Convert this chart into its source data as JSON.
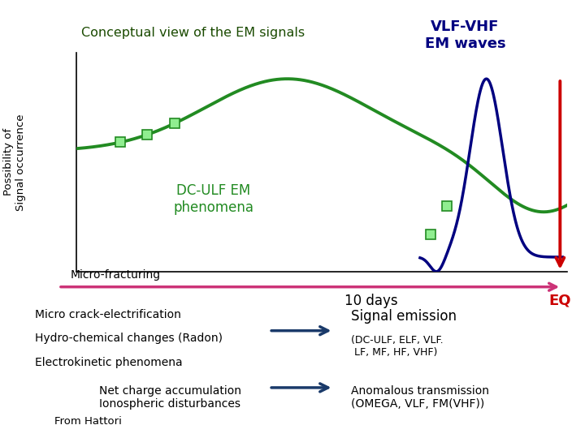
{
  "title_box_text": "Conceptual view of the EM signals",
  "title_box_bg": "#22cc00",
  "title_box_text_color": "#1a4a00",
  "vlf_vhf_text": "VLF-VHF\nEM waves",
  "vlf_vhf_color": "#000080",
  "ylabel_line1": "Possibility of",
  "ylabel_line2": "Signal occurrence",
  "xlabel_10days": "10 days",
  "xlabel_eq": "EQ",
  "eq_color": "#cc0000",
  "green_curve_color": "#228B22",
  "blue_curve_color": "#000080",
  "dc_ulf_text": "DC-ULF EM\nphenomena",
  "dc_ulf_color": "#228B22",
  "micro_fracturing_text": "Micro-fracturing",
  "micro_crack_line1": "Micro crack-electrification",
  "micro_crack_line2": "Hydro-chemical changes (Radon)",
  "micro_crack_line3": "Electrokinetic phenomena",
  "net_charge_text": "Net charge accumulation\nIonospheric disturbances",
  "signal_emission_title": "Signal emission",
  "signal_emission_sub": "(DC-ULF, ELF, VLF.\n LF, MF, HF, VHF)",
  "anomalous_text": "Anomalous transmission\n(OMEGA, VLF, FM(VHF))",
  "from_hattori_text": "From Hattori",
  "from_hattori_bg": "#c8d4a0",
  "arrow_dark_color": "#1a3a6a",
  "arrow_pink_color": "#cc3377",
  "background_color": "#ffffff",
  "marker_color": "#90EE90",
  "marker_edge_color": "#228B22"
}
